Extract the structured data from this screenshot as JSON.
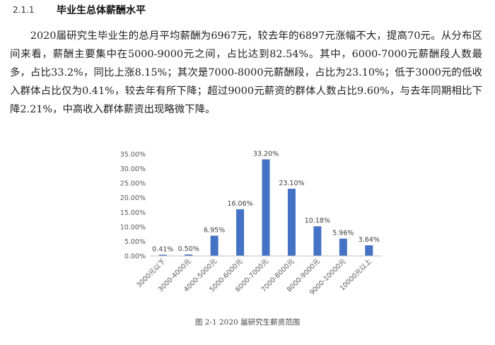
{
  "section": {
    "number": "2.1.1",
    "title": "毕业生总体薪酬水平"
  },
  "paragraph": "2020届研究生毕业生的总月平均薪酬为6967元，较去年的6897元涨幅不大，提高70元。从分布区间来看，薪酬主要集中在5000-9000元之间，占比达到82.54%。其中，6000-7000元薪酬段人数最多，占比33.2%，同比上涨8.15%；其次是7000-8000元薪酬段，占比为23.10%；低于3000元的低收入群体占比仅为0.41%，较去年有所下降；超过9000元薪资的群体人数占比9.60%，与去年同期相比下降2.21%，中高收入群体薪资出现略微下降。",
  "caption": "图 2-1 2020 届研究生薪资范围",
  "chart_data": {
    "type": "bar",
    "categories": [
      "3000元以下",
      "3000-4000元",
      "4000-5000元",
      "5000-6000元",
      "6000-7000元",
      "7000-8000元",
      "8000-9000元",
      "9000-10000元",
      "10000元以上"
    ],
    "values": [
      0.41,
      0.5,
      6.95,
      16.06,
      33.2,
      23.1,
      10.18,
      5.96,
      3.64
    ],
    "value_labels": [
      "0.41%",
      "0.50%",
      "6.95%",
      "16.06%",
      "33.20%",
      "23.10%",
      "10.18%",
      "5.96%",
      "3.64%"
    ],
    "y_ticks": [
      "0.00%",
      "5.00%",
      "10.00%",
      "15.00%",
      "20.00%",
      "25.00%",
      "30.00%",
      "35.00%"
    ],
    "ylim": [
      0,
      35
    ],
    "grid": false,
    "bar_color": "#4472c4"
  }
}
